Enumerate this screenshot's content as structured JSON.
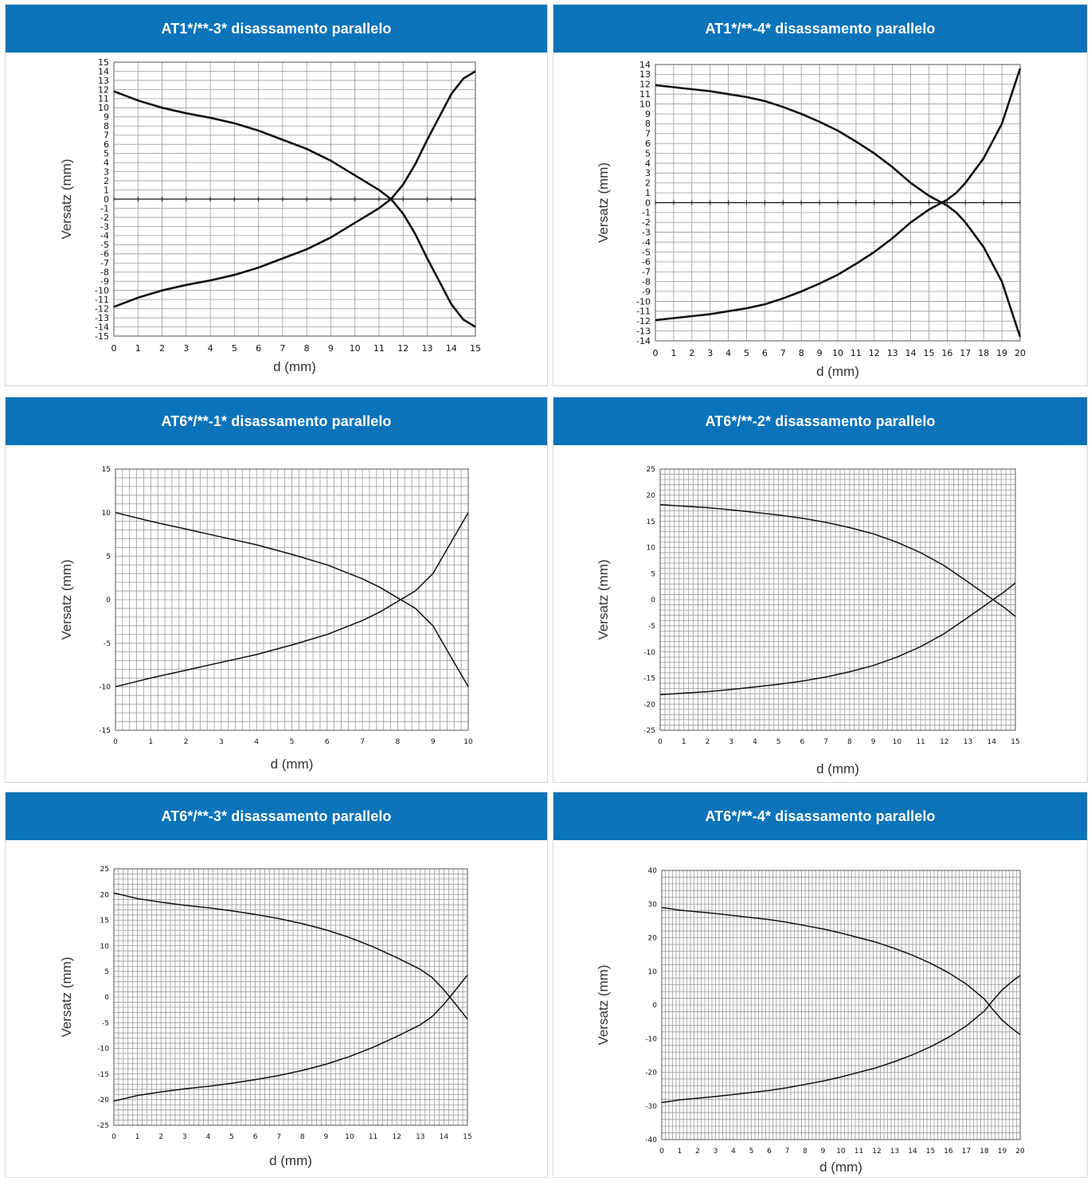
{
  "theme": {
    "header_color": "#0b73b9",
    "grid_color": "#9a9a9a",
    "curve_color": "#111111"
  },
  "chart_data": [
    {
      "type": "line",
      "title": "AT1*/**-3* disassamento parallelo",
      "xlabel": "d (mm)",
      "ylabel": "Versatz (mm)",
      "xlim": [
        0,
        15
      ],
      "ylim": [
        -15,
        15
      ],
      "x_ticks": [
        0,
        1,
        2,
        3,
        4,
        5,
        6,
        7,
        8,
        9,
        10,
        11,
        12,
        13,
        14,
        15
      ],
      "y_ticks": [
        15,
        14,
        13,
        12,
        11,
        10,
        9,
        8,
        7,
        6,
        5,
        4,
        3,
        2,
        1,
        0,
        -1,
        -2,
        -3,
        -4,
        -5,
        -6,
        -7,
        -8,
        -9,
        -10,
        -11,
        -12,
        -13,
        -14,
        -15
      ],
      "grid": "on",
      "zero_line": true,
      "series": [
        {
          "x": [
            0,
            1,
            2,
            3,
            4,
            5,
            6,
            7,
            8,
            9,
            10,
            11,
            11.5,
            12,
            12.5,
            13,
            13.5,
            14,
            14.5,
            15
          ],
          "values": [
            11.8,
            10.8,
            10.0,
            9.4,
            8.9,
            8.3,
            7.5,
            6.5,
            5.5,
            4.2,
            2.6,
            1.0,
            0.0,
            -1.6,
            -3.8,
            -6.5,
            -9.0,
            -11.5,
            -13.2,
            -14.0
          ]
        },
        {
          "x": [
            0,
            1,
            2,
            3,
            4,
            5,
            6,
            7,
            8,
            9,
            10,
            11,
            11.5,
            12,
            12.5,
            13,
            13.5,
            14,
            14.5,
            15
          ],
          "values": [
            -11.8,
            -10.8,
            -10.0,
            -9.4,
            -8.9,
            -8.3,
            -7.5,
            -6.5,
            -5.5,
            -4.2,
            -2.6,
            -1.0,
            0.0,
            1.6,
            3.8,
            6.5,
            9.0,
            11.5,
            13.2,
            14.0
          ]
        }
      ]
    },
    {
      "type": "line",
      "title": "AT1*/**-4* disassamento parallelo",
      "xlabel": "d (mm)",
      "ylabel": "Versatz (mm)",
      "xlim": [
        0,
        20
      ],
      "ylim": [
        -14,
        14
      ],
      "x_ticks": [
        0,
        1,
        2,
        3,
        4,
        5,
        6,
        7,
        8,
        9,
        10,
        11,
        12,
        13,
        14,
        15,
        16,
        17,
        18,
        19,
        20
      ],
      "y_ticks": [
        14,
        13,
        12,
        11,
        10,
        9,
        8,
        7,
        6,
        5,
        4,
        3,
        2,
        1,
        0,
        -1,
        -2,
        -3,
        -4,
        -5,
        -6,
        -7,
        -8,
        -9,
        -10,
        -11,
        -12,
        -13,
        -14
      ],
      "grid": "on",
      "zero_line": true,
      "series": [
        {
          "x": [
            0,
            1,
            2,
            3,
            4,
            5,
            6,
            7,
            8,
            9,
            10,
            11,
            12,
            13,
            14,
            15,
            16,
            16.5,
            17,
            18,
            19,
            19.5,
            20
          ],
          "values": [
            11.9,
            11.7,
            11.5,
            11.3,
            11.0,
            10.7,
            10.3,
            9.7,
            9.0,
            8.2,
            7.3,
            6.2,
            5.0,
            3.6,
            2.0,
            0.7,
            -0.3,
            -1.0,
            -2.0,
            -4.5,
            -8.0,
            -10.8,
            -13.6
          ]
        },
        {
          "x": [
            0,
            1,
            2,
            3,
            4,
            5,
            6,
            7,
            8,
            9,
            10,
            11,
            12,
            13,
            14,
            15,
            16,
            16.5,
            17,
            18,
            19,
            19.5,
            20
          ],
          "values": [
            -11.9,
            -11.7,
            -11.5,
            -11.3,
            -11.0,
            -10.7,
            -10.3,
            -9.7,
            -9.0,
            -8.2,
            -7.3,
            -6.2,
            -5.0,
            -3.6,
            -2.0,
            -0.7,
            0.3,
            1.0,
            2.0,
            4.5,
            8.0,
            10.8,
            13.6
          ]
        }
      ]
    },
    {
      "type": "line",
      "title": "AT6*/**-1* disassamento parallelo",
      "xlabel": "d (mm)",
      "ylabel": "Versatz (mm)",
      "xlim": [
        0,
        10
      ],
      "ylim": [
        -15,
        15
      ],
      "x_ticks": [
        0,
        1,
        2,
        3,
        4,
        5,
        6,
        7,
        8,
        9,
        10
      ],
      "y_ticks": [
        15,
        10,
        5,
        0,
        -5,
        -10,
        -15
      ],
      "grid": "on",
      "zero_line": false,
      "series": [
        {
          "x": [
            0,
            1,
            2,
            3,
            4,
            5,
            6,
            7,
            7.5,
            8,
            8.5,
            9,
            9.5,
            10
          ],
          "values": [
            10,
            9.0,
            8.1,
            7.2,
            6.3,
            5.2,
            4.0,
            2.4,
            1.4,
            0.2,
            -1.0,
            -3.0,
            -6.5,
            -10
          ]
        },
        {
          "x": [
            0,
            1,
            2,
            3,
            4,
            5,
            6,
            7,
            7.5,
            8,
            8.5,
            9,
            9.5,
            10
          ],
          "values": [
            -10,
            -9.0,
            -8.1,
            -7.2,
            -6.3,
            -5.2,
            -4.0,
            -2.4,
            -1.4,
            -0.2,
            1.0,
            3.0,
            6.5,
            10
          ]
        }
      ]
    },
    {
      "type": "line",
      "title": "AT6*/**-2* disassamento parallelo",
      "xlabel": "d (mm)",
      "ylabel": "Versatz (mm)",
      "xlim": [
        0,
        15
      ],
      "ylim": [
        -25,
        25
      ],
      "x_ticks": [
        0,
        1,
        2,
        3,
        4,
        5,
        6,
        7,
        8,
        9,
        10,
        11,
        12,
        13,
        14,
        15
      ],
      "y_ticks": [
        25,
        20,
        15,
        10,
        5,
        0,
        -5,
        -10,
        -15,
        -20,
        -25
      ],
      "grid": "on",
      "zero_line": false,
      "series": [
        {
          "x": [
            0,
            1,
            2,
            3,
            4,
            5,
            6,
            7,
            8,
            9,
            10,
            11,
            12,
            13,
            13.5,
            14,
            14.5,
            15
          ],
          "values": [
            18.2,
            17.9,
            17.6,
            17.2,
            16.7,
            16.2,
            15.6,
            14.8,
            13.8,
            12.6,
            11.0,
            9.0,
            6.5,
            3.4,
            1.8,
            0.2,
            -1.4,
            -3.2
          ]
        },
        {
          "x": [
            0,
            1,
            2,
            3,
            4,
            5,
            6,
            7,
            8,
            9,
            10,
            11,
            12,
            13,
            13.5,
            14,
            14.5,
            15
          ],
          "values": [
            -18.2,
            -17.9,
            -17.6,
            -17.2,
            -16.7,
            -16.2,
            -15.6,
            -14.8,
            -13.8,
            -12.6,
            -11.0,
            -9.0,
            -6.5,
            -3.4,
            -1.8,
            -0.2,
            1.4,
            3.2
          ]
        }
      ]
    },
    {
      "type": "line",
      "title": "AT6*/**-3* disassamento parallelo",
      "xlabel": "d (mm)",
      "ylabel": "Versatz (mm)",
      "xlim": [
        0,
        15
      ],
      "ylim": [
        -25,
        25
      ],
      "x_ticks": [
        0,
        1,
        2,
        3,
        4,
        5,
        6,
        7,
        8,
        9,
        10,
        11,
        12,
        13,
        14,
        15
      ],
      "y_ticks": [
        25,
        20,
        15,
        10,
        5,
        0,
        -5,
        -10,
        -15,
        -20,
        -25
      ],
      "grid": "on",
      "zero_line": false,
      "series": [
        {
          "x": [
            0,
            1,
            2,
            3,
            4,
            5,
            6,
            7,
            8,
            9,
            10,
            11,
            12,
            13,
            13.5,
            14,
            14.5,
            15
          ],
          "values": [
            20.3,
            19.2,
            18.5,
            17.9,
            17.4,
            16.8,
            16.1,
            15.3,
            14.3,
            13.1,
            11.6,
            9.8,
            7.7,
            5.4,
            3.8,
            1.4,
            -1.4,
            -4.3
          ]
        },
        {
          "x": [
            0,
            1,
            2,
            3,
            4,
            5,
            6,
            7,
            8,
            9,
            10,
            11,
            12,
            13,
            13.5,
            14,
            14.5,
            15
          ],
          "values": [
            -20.3,
            -19.2,
            -18.5,
            -17.9,
            -17.4,
            -16.8,
            -16.1,
            -15.3,
            -14.3,
            -13.1,
            -11.6,
            -9.8,
            -7.7,
            -5.4,
            -3.8,
            -1.4,
            1.4,
            4.3
          ]
        }
      ]
    },
    {
      "type": "line",
      "title": "AT6*/**-4* disassamento parallelo",
      "xlabel": "d (mm)",
      "ylabel": "Versatz (mm)",
      "xlim": [
        0,
        20
      ],
      "ylim": [
        -40,
        40
      ],
      "x_ticks": [
        0,
        1,
        2,
        3,
        4,
        5,
        6,
        7,
        8,
        9,
        10,
        11,
        12,
        13,
        14,
        15,
        16,
        17,
        18,
        19,
        20
      ],
      "y_ticks": [
        40,
        30,
        20,
        10,
        0,
        -10,
        -20,
        -30,
        -40
      ],
      "grid": "on",
      "zero_line": false,
      "series": [
        {
          "x": [
            0,
            1,
            2,
            3,
            4,
            5,
            6,
            7,
            8,
            9,
            10,
            11,
            12,
            13,
            14,
            15,
            16,
            17,
            18,
            18.5,
            19,
            19.5,
            20
          ],
          "values": [
            29,
            28.2,
            27.7,
            27.2,
            26.6,
            26.0,
            25.4,
            24.6,
            23.6,
            22.6,
            21.4,
            20.0,
            18.6,
            16.8,
            14.8,
            12.4,
            9.6,
            6.2,
            1.8,
            -1.5,
            -4.5,
            -6.8,
            -8.8
          ]
        },
        {
          "x": [
            0,
            1,
            2,
            3,
            4,
            5,
            6,
            7,
            8,
            9,
            10,
            11,
            12,
            13,
            14,
            15,
            16,
            17,
            18,
            18.5,
            19,
            19.5,
            20
          ],
          "values": [
            -29,
            -28.2,
            -27.7,
            -27.2,
            -26.6,
            -26.0,
            -25.4,
            -24.6,
            -23.6,
            -22.6,
            -21.4,
            -20.0,
            -18.6,
            -16.8,
            -14.8,
            -12.4,
            -9.6,
            -6.2,
            -1.8,
            1.5,
            4.5,
            6.8,
            8.8
          ]
        }
      ]
    }
  ]
}
